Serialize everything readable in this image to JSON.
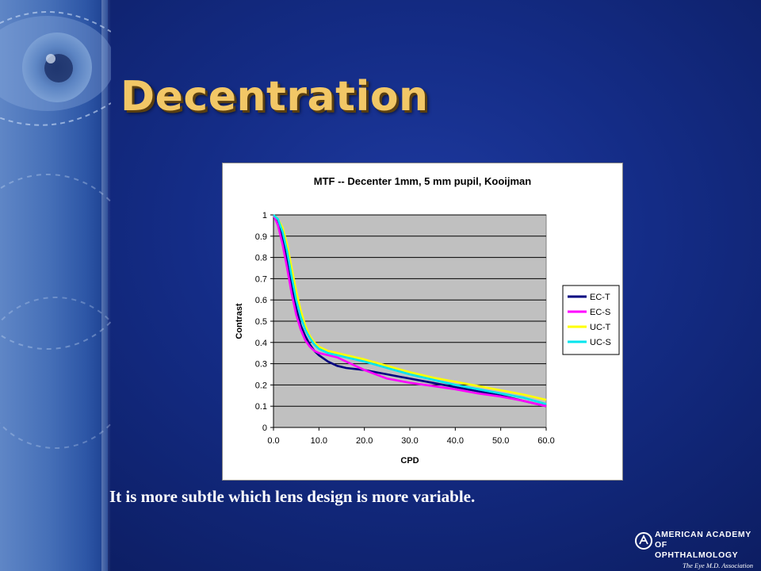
{
  "slide": {
    "title": "Decentration",
    "caption": "It is more subtle which lens design is more variable."
  },
  "logo": {
    "line1": "American Academy",
    "line2": "of Ophthalmology",
    "tagline": "The Eye M.D. Association"
  },
  "colors": {
    "title": "#f2c766",
    "background": "#142c86",
    "plot_area": "#c0c0c0"
  },
  "chart_data": {
    "type": "line",
    "title": "MTF -- Decenter 1mm, 5 mm pupil, Kooijman",
    "xlabel": "CPD",
    "ylabel": "Contrast",
    "xlim": [
      0,
      60
    ],
    "ylim": [
      0,
      1
    ],
    "x_ticks": [
      "0.0",
      "10.0",
      "20.0",
      "30.0",
      "40.0",
      "50.0",
      "60.0"
    ],
    "y_ticks": [
      "0",
      "0.1",
      "0.2",
      "0.3",
      "0.4",
      "0.5",
      "0.6",
      "0.7",
      "0.8",
      "0.9",
      "1"
    ],
    "grid": "horizontal",
    "legend_position": "right",
    "series": [
      {
        "name": "EC-T",
        "color": "#000080",
        "x": [
          0,
          1,
          2,
          3,
          4,
          5,
          6,
          7,
          8,
          9,
          10,
          12,
          14,
          16,
          20,
          25,
          30,
          35,
          40,
          45,
          50,
          55,
          60
        ],
        "y": [
          1,
          0.96,
          0.89,
          0.78,
          0.66,
          0.56,
          0.48,
          0.43,
          0.39,
          0.36,
          0.34,
          0.31,
          0.29,
          0.28,
          0.27,
          0.25,
          0.23,
          0.21,
          0.19,
          0.17,
          0.15,
          0.125,
          0.1
        ]
      },
      {
        "name": "EC-S",
        "color": "#ff00ff",
        "x": [
          0,
          1,
          2,
          3,
          4,
          5,
          6,
          7,
          8,
          9,
          10,
          12,
          14,
          16,
          20,
          25,
          30,
          35,
          40,
          45,
          50,
          55,
          60
        ],
        "y": [
          1,
          0.95,
          0.86,
          0.75,
          0.63,
          0.53,
          0.46,
          0.41,
          0.38,
          0.36,
          0.35,
          0.34,
          0.33,
          0.31,
          0.27,
          0.23,
          0.21,
          0.195,
          0.18,
          0.16,
          0.145,
          0.125,
          0.1
        ]
      },
      {
        "name": "UC-T",
        "color": "#ffff00",
        "x": [
          0,
          1,
          2,
          3,
          4,
          5,
          6,
          7,
          8,
          9,
          10,
          12,
          14,
          16,
          20,
          25,
          30,
          35,
          40,
          45,
          50,
          55,
          60
        ],
        "y": [
          1,
          0.98,
          0.94,
          0.86,
          0.75,
          0.64,
          0.55,
          0.48,
          0.43,
          0.4,
          0.38,
          0.36,
          0.35,
          0.34,
          0.32,
          0.29,
          0.26,
          0.235,
          0.215,
          0.195,
          0.175,
          0.155,
          0.13
        ]
      },
      {
        "name": "UC-S",
        "color": "#00e5ee",
        "x": [
          0,
          1,
          2,
          3,
          4,
          5,
          6,
          7,
          8,
          9,
          10,
          12,
          14,
          16,
          20,
          25,
          30,
          35,
          40,
          45,
          50,
          55,
          60
        ],
        "y": [
          1,
          0.98,
          0.92,
          0.83,
          0.71,
          0.6,
          0.52,
          0.46,
          0.42,
          0.39,
          0.37,
          0.35,
          0.34,
          0.33,
          0.31,
          0.28,
          0.25,
          0.225,
          0.2,
          0.18,
          0.16,
          0.14,
          0.11
        ]
      }
    ]
  }
}
